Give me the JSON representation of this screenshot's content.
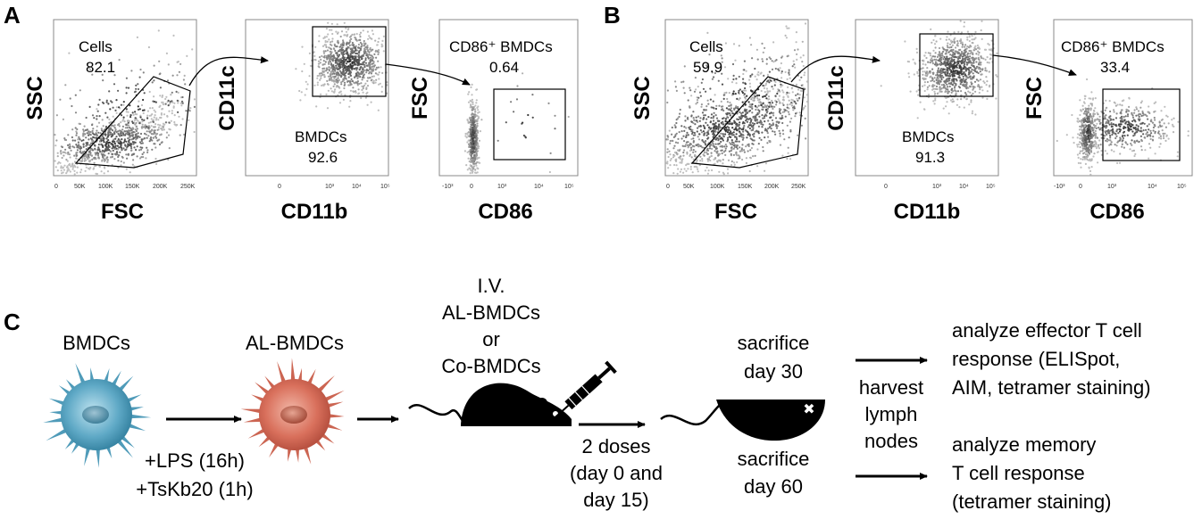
{
  "panel_a": {
    "letter": "A",
    "plots": [
      {
        "gate_name": "Cells",
        "gate_value": "82.1",
        "x_axis": "FSC",
        "y_axis": "SSC",
        "x_ticks": [
          "0",
          "50K",
          "100K",
          "150K",
          "200K",
          "250K"
        ]
      },
      {
        "gate_name": "BMDCs",
        "gate_value": "92.6",
        "x_axis": "CD11b",
        "y_axis": "CD11c",
        "x_ticks": [
          "0",
          "10³",
          "10⁴",
          "10⁵"
        ]
      },
      {
        "gate_name": "CD86⁺ BMDCs",
        "gate_value": "0.64",
        "x_axis": "CD86",
        "y_axis": "FSC",
        "x_ticks": [
          "-10³",
          "0",
          "10³",
          "10⁴",
          "10⁵"
        ]
      }
    ]
  },
  "panel_b": {
    "letter": "B",
    "plots": [
      {
        "gate_name": "Cells",
        "gate_value": "59.9",
        "x_axis": "FSC",
        "y_axis": "SSC",
        "x_ticks": [
          "0",
          "50K",
          "100K",
          "150K",
          "200K",
          "250K"
        ]
      },
      {
        "gate_name": "BMDCs",
        "gate_value": "91.3",
        "x_axis": "CD11b",
        "y_axis": "CD11c",
        "x_ticks": [
          "0",
          "10³",
          "10⁴",
          "10⁵"
        ]
      },
      {
        "gate_name": "CD86⁺ BMDCs",
        "gate_value": "33.4",
        "x_axis": "CD86",
        "y_axis": "FSC",
        "x_ticks": [
          "-10³",
          "0",
          "10³",
          "10⁴",
          "10⁵"
        ]
      }
    ]
  },
  "panel_c": {
    "letter": "C",
    "bmdc_label": "BMDCs",
    "al_bmdc_label": "AL-BMDCs",
    "treatment_line1": "+LPS (16h)",
    "treatment_line2": "+TsKb20 (1h)",
    "injection_line1": "I.V.",
    "injection_line2": "AL-BMDCs",
    "injection_line3": "or",
    "injection_line4": "Co-BMDCs",
    "doses_line1": "2 doses",
    "doses_line2": "(day 0 and",
    "doses_line3": "day 15)",
    "sacrifice30_line1": "sacrifice",
    "sacrifice30_line2": "day 30",
    "sacrifice60_line1": "sacrifice",
    "sacrifice60_line2": "day 60",
    "harvest_line1": "harvest",
    "harvest_line2": "lymph",
    "harvest_line3": "nodes",
    "effector_line1": "analyze effector T cell",
    "effector_line2": "response (ELISpot,",
    "effector_line3": "AIM, tetramer staining)",
    "memory_line1": "analyze memory",
    "memory_line2": "T cell response",
    "memory_line3": "(tetramer staining)"
  }
}
